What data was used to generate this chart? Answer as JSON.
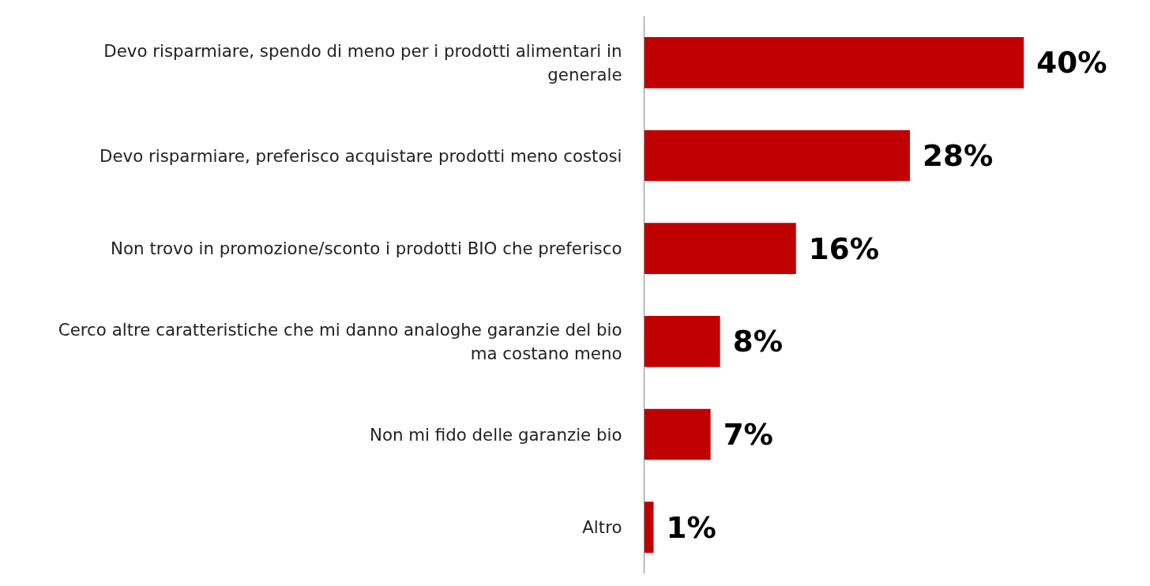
{
  "chart_data": {
    "type": "bar",
    "orientation": "horizontal",
    "categories": [
      "Devo risparmiare, spendo di meno per i prodotti alimentari in generale",
      "Devo risparmiare, preferisco acquistare prodotti meno costosi",
      "Non trovo in promozione/sconto i prodotti BIO che preferisco",
      "Cerco altre caratteristiche che mi danno analoghe garanzie del bio ma costano meno",
      "Non mi fido delle garanzie bio",
      "Altro"
    ],
    "values": [
      40,
      28,
      16,
      8,
      7,
      1
    ],
    "value_labels": [
      "40%",
      "28%",
      "16%",
      "8%",
      "7%",
      "1%"
    ],
    "color": "#c00000",
    "tick_labels": "y"
  }
}
